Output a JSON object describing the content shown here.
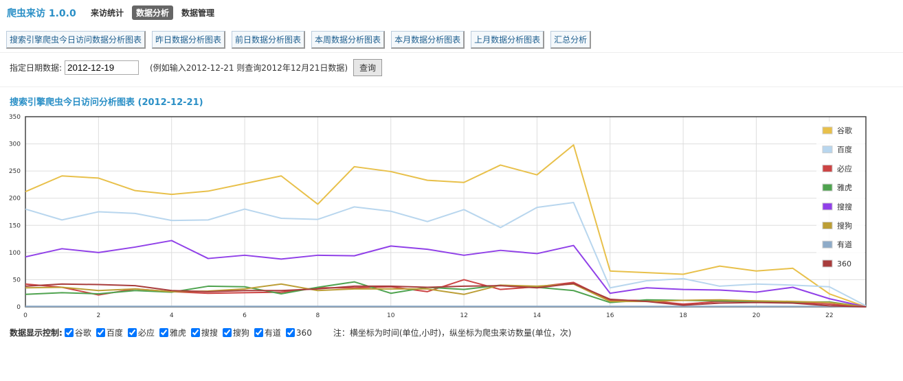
{
  "header": {
    "logo": "爬虫来访 1.0.0",
    "nav": [
      "来访统计",
      "数据分析",
      "数据管理"
    ],
    "active_nav": 1
  },
  "toolbar": {
    "buttons": [
      "搜索引擎爬虫今日访问数据分析图表",
      "昨日数据分析图表",
      "前日数据分析图表",
      "本周数据分析图表",
      "本月数据分析图表",
      "上月数据分析图表",
      "汇总分析"
    ]
  },
  "query": {
    "label": "指定日期数据:",
    "input": "2012-12-19",
    "hint": "(例如输入2012-12-21 则查询2012年12月21日数据)",
    "button": "查询"
  },
  "chart_data": {
    "type": "line",
    "title": "搜索引擎爬虫今日访问分析图表 (2012-12-21)",
    "x": [
      0,
      1,
      2,
      3,
      4,
      5,
      6,
      7,
      8,
      9,
      10,
      11,
      12,
      13,
      14,
      15,
      16,
      17,
      18,
      19,
      20,
      21,
      22,
      23
    ],
    "xlim": [
      0,
      23
    ],
    "xticks": [
      0,
      2,
      4,
      6,
      8,
      10,
      12,
      14,
      16,
      18,
      20,
      22
    ],
    "ylim": [
      0,
      350
    ],
    "yticks": [
      0,
      50,
      100,
      150,
      200,
      250,
      300,
      350
    ],
    "grid": true,
    "legend": "top-right",
    "series": [
      {
        "name": "谷歌",
        "color": "#e8c04a",
        "values": [
          212,
          241,
          237,
          214,
          207,
          213,
          227,
          241,
          189,
          258,
          249,
          233,
          229,
          261,
          243,
          298,
          66,
          63,
          60,
          75,
          66,
          71,
          24,
          0
        ]
      },
      {
        "name": "百度",
        "color": "#b8d6ee",
        "values": [
          180,
          160,
          175,
          172,
          159,
          160,
          180,
          163,
          161,
          184,
          176,
          157,
          179,
          146,
          183,
          192,
          35,
          48,
          52,
          38,
          42,
          40,
          37,
          2
        ]
      },
      {
        "name": "必应",
        "color": "#cc4444",
        "values": [
          42,
          36,
          22,
          33,
          28,
          25,
          26,
          27,
          35,
          35,
          37,
          28,
          50,
          32,
          37,
          45,
          12,
          12,
          5,
          10,
          10,
          8,
          5,
          0
        ]
      },
      {
        "name": "雅虎",
        "color": "#4fa34f",
        "values": [
          23,
          26,
          24,
          30,
          27,
          38,
          37,
          24,
          36,
          46,
          25,
          36,
          32,
          40,
          36,
          30,
          8,
          13,
          12,
          11,
          10,
          9,
          9,
          0
        ]
      },
      {
        "name": "搜搜",
        "color": "#9040e8",
        "values": [
          92,
          107,
          100,
          110,
          122,
          89,
          95,
          88,
          95,
          94,
          112,
          106,
          95,
          104,
          98,
          113,
          25,
          35,
          32,
          31,
          27,
          36,
          15,
          0
        ]
      },
      {
        "name": "搜狗",
        "color": "#bc9e36",
        "values": [
          35,
          36,
          30,
          33,
          28,
          29,
          33,
          42,
          30,
          33,
          33,
          33,
          23,
          40,
          38,
          42,
          10,
          10,
          12,
          13,
          11,
          10,
          8,
          0
        ]
      },
      {
        "name": "有道",
        "color": "#8eabc8",
        "values": [
          1,
          1,
          1,
          1,
          1,
          1,
          1,
          1,
          1,
          1,
          1,
          1,
          1,
          1,
          1,
          1,
          1,
          1,
          1,
          1,
          1,
          1,
          1,
          0
        ]
      },
      {
        "name": "360",
        "color": "#a83c3c",
        "values": [
          38,
          42,
          41,
          39,
          30,
          28,
          30,
          30,
          33,
          38,
          38,
          36,
          38,
          39,
          35,
          43,
          14,
          10,
          3,
          7,
          8,
          7,
          2,
          0
        ]
      }
    ]
  },
  "controls": {
    "label": "数据显示控制:",
    "note": "注：横坐标为时间(单位,小时)，纵坐标为爬虫来访数量(单位，次)"
  }
}
